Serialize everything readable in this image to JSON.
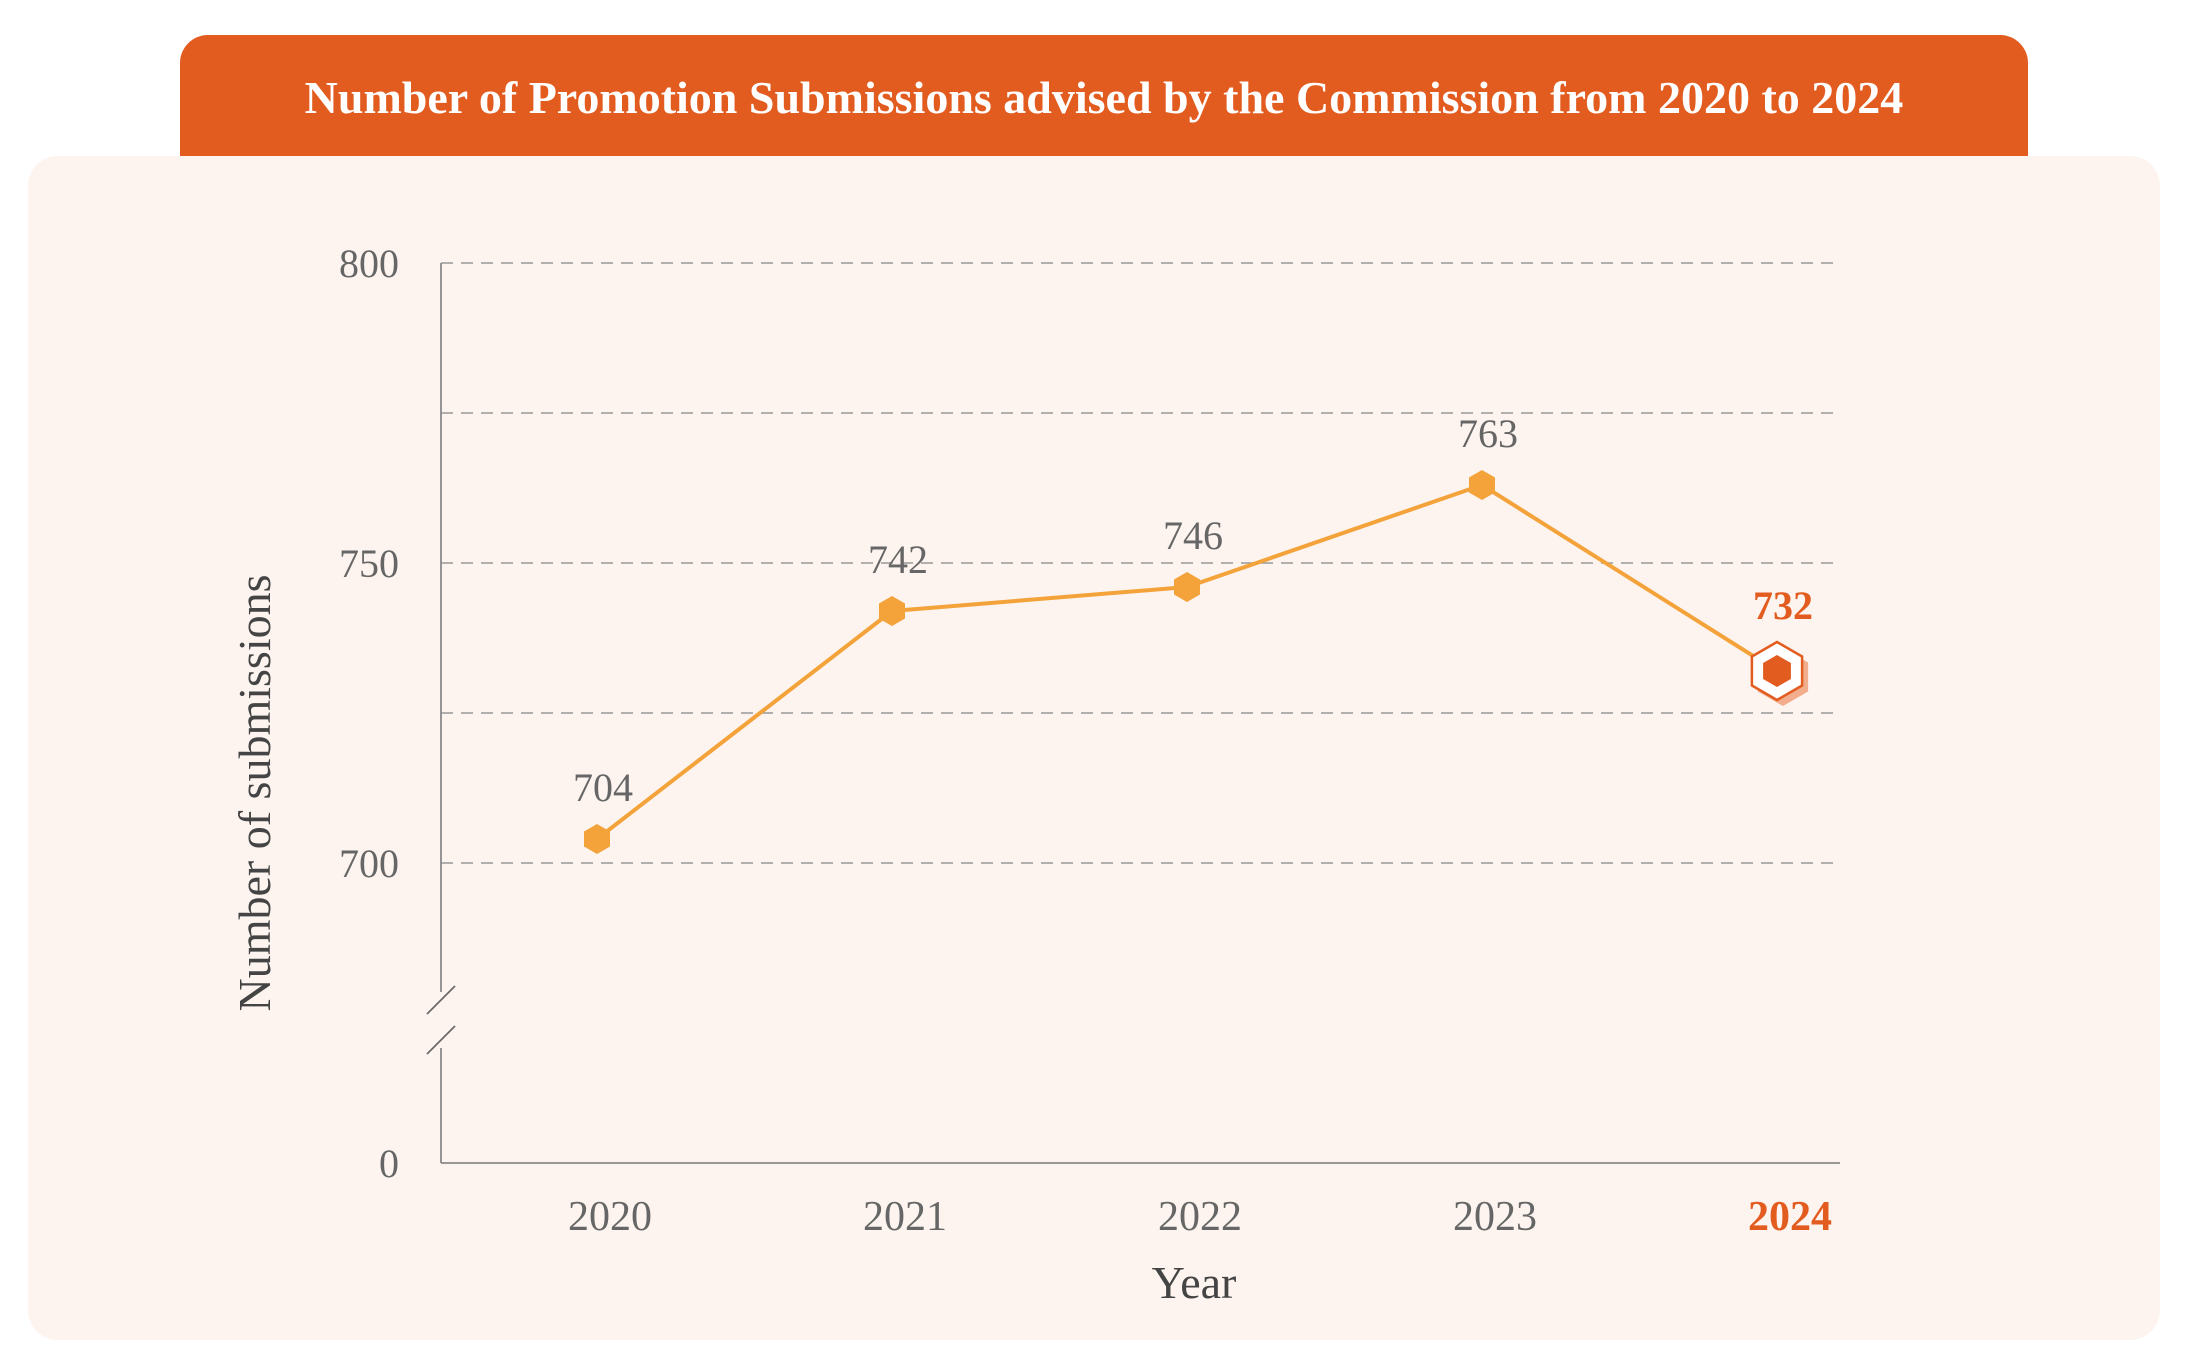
{
  "header": {
    "title": "Number of Promotion Submissions advised by the Commission from 2020 to 2024"
  },
  "colors": {
    "accent": "#e35c1f",
    "line": "#f4a23a",
    "panel_bg": "#fdf4ef",
    "text": "#555555",
    "highlight": "#e35c1f"
  },
  "chart_data": {
    "type": "line",
    "title": "Number of Promotion Submissions advised by the Commission from 2020 to 2024",
    "xlabel": "Year",
    "ylabel": "Number of submissions",
    "categories": [
      "2020",
      "2021",
      "2022",
      "2023",
      "2024"
    ],
    "series": [
      {
        "values": [
          704,
          742,
          746,
          763,
          732
        ]
      }
    ],
    "y_ticks": [
      "0",
      "700",
      "750",
      "800"
    ],
    "y_axis_break": true,
    "ylim_upper": [
      700,
      800
    ],
    "grid": "dashed horizontal",
    "highlight_category": "2024",
    "data_labels": [
      "704",
      "742",
      "746",
      "763",
      "732"
    ]
  }
}
